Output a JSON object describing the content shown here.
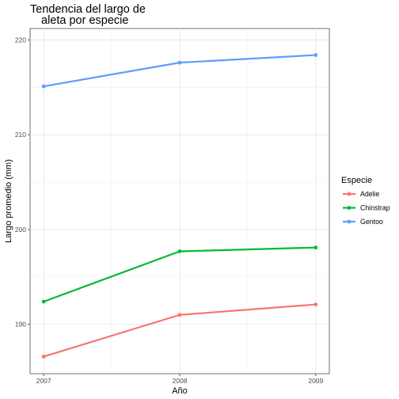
{
  "chart_data": {
    "type": "line",
    "title_lines": [
      "Tendencia del largo de",
      "aleta por especie"
    ],
    "xlabel": "Año",
    "ylabel": "Largo promedio (mm)",
    "x": [
      2007,
      2008,
      2009
    ],
    "x_ticks": [
      "2007",
      "2008",
      "2009"
    ],
    "y_ticks": [
      "190",
      "200",
      "210",
      "220"
    ],
    "ylim": [
      184.8,
      221.2
    ],
    "grid": true,
    "legend": {
      "title": "Especie",
      "placement": "right"
    },
    "series": [
      {
        "name": "Adelie",
        "values": [
          186.6,
          191.0,
          192.1
        ],
        "color": "#F8766D"
      },
      {
        "name": "Chinstrap",
        "values": [
          192.4,
          197.7,
          198.1
        ],
        "color": "#00BA38"
      },
      {
        "name": "Gentoo",
        "values": [
          215.1,
          217.6,
          218.4
        ],
        "color": "#619CFF"
      }
    ]
  }
}
